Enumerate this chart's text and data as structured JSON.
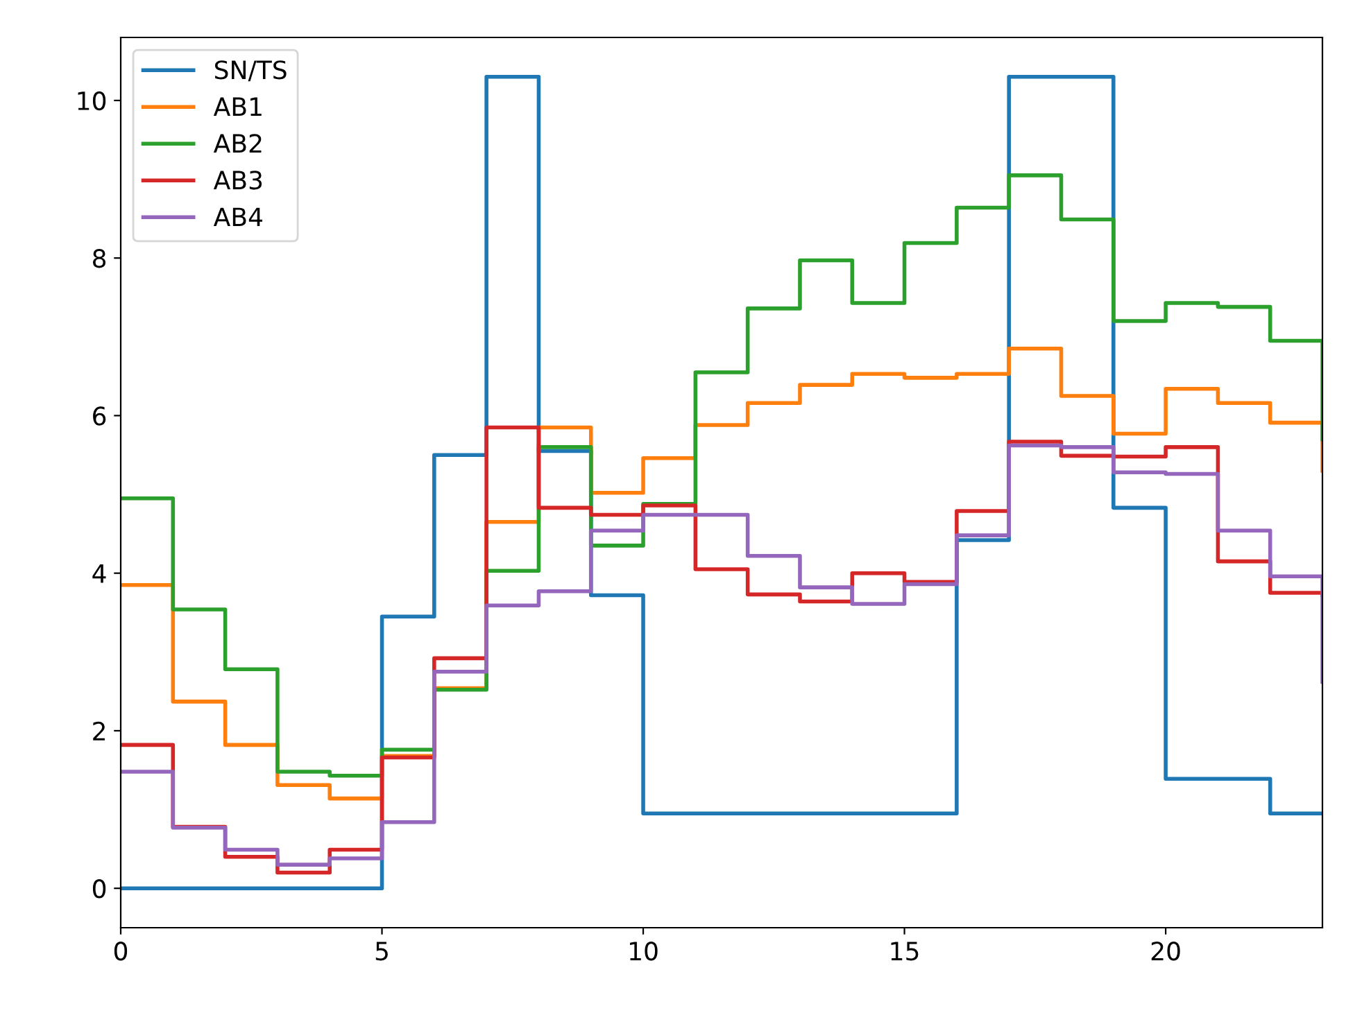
{
  "chart_data": {
    "type": "step",
    "x": [
      0,
      1,
      2,
      3,
      4,
      5,
      6,
      7,
      8,
      9,
      10,
      11,
      12,
      13,
      14,
      15,
      16,
      17,
      18,
      19,
      20,
      21,
      22,
      23
    ],
    "series": [
      {
        "name": "SN/TS",
        "color": "#1f77b4",
        "values": [
          0,
          0,
          0,
          0,
          0,
          3.45,
          5.5,
          10.3,
          5.55,
          3.72,
          0.95,
          0.95,
          0.95,
          0.95,
          0.95,
          0.95,
          4.42,
          10.3,
          10.3,
          4.83,
          1.39,
          1.39,
          0.95,
          0.95
        ]
      },
      {
        "name": "AB1",
        "color": "#ff7f0e",
        "values": [
          3.85,
          2.37,
          1.82,
          1.31,
          1.14,
          1.68,
          2.54,
          4.65,
          5.85,
          5.02,
          5.46,
          5.88,
          6.16,
          6.39,
          6.53,
          6.48,
          6.53,
          6.85,
          6.25,
          5.77,
          6.34,
          6.16,
          5.91,
          5.3
        ]
      },
      {
        "name": "AB2",
        "color": "#2ca02c",
        "values": [
          4.95,
          3.54,
          2.78,
          1.48,
          1.43,
          1.76,
          2.52,
          4.03,
          5.6,
          4.35,
          4.88,
          6.55,
          7.36,
          7.97,
          7.43,
          8.19,
          8.64,
          9.05,
          8.49,
          7.2,
          7.43,
          7.38,
          6.95,
          5.7
        ]
      },
      {
        "name": "AB3",
        "color": "#d62728",
        "values": [
          1.82,
          0.78,
          0.4,
          0.2,
          0.49,
          1.66,
          2.92,
          5.85,
          4.83,
          4.74,
          4.86,
          4.05,
          3.73,
          3.64,
          4.0,
          3.89,
          4.79,
          5.67,
          5.49,
          5.48,
          5.6,
          4.15,
          3.75,
          3.72
        ]
      },
      {
        "name": "AB4",
        "color": "#9467bd",
        "values": [
          1.48,
          0.77,
          0.49,
          0.3,
          0.38,
          0.84,
          2.75,
          3.59,
          3.77,
          4.54,
          4.74,
          4.74,
          4.22,
          3.82,
          3.61,
          3.86,
          4.48,
          5.62,
          5.6,
          5.28,
          5.26,
          4.54,
          3.96,
          2.62
        ]
      }
    ],
    "xlim": [
      0,
      23
    ],
    "ylim": [
      -0.5,
      10.8
    ],
    "xticks": [
      0,
      5,
      10,
      15,
      20
    ],
    "yticks": [
      0,
      2,
      4,
      6,
      8,
      10
    ],
    "legend": "top left",
    "grid": false
  }
}
